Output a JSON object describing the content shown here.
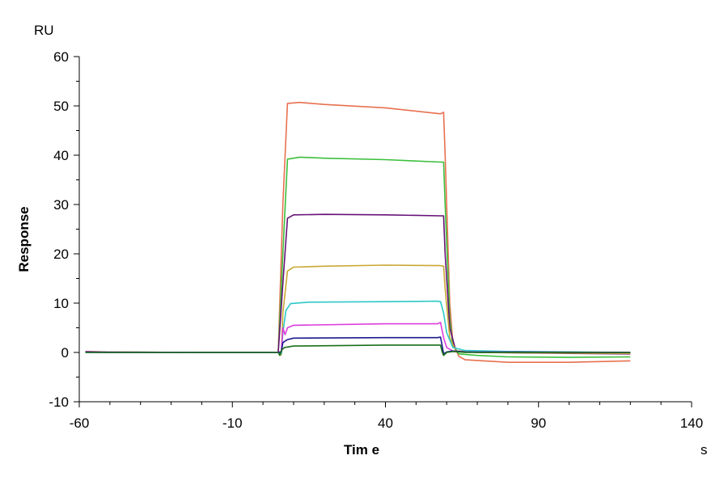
{
  "chart_data": {
    "type": "line",
    "title": "",
    "xlabel": "Tim e",
    "ylabel": "Response",
    "y_unit": "RU",
    "x_unit": "s",
    "xlim": [
      -60,
      140
    ],
    "ylim": [
      -10,
      60
    ],
    "x_ticks": [
      -60,
      -10,
      40,
      90,
      140
    ],
    "y_ticks": [
      -10,
      0,
      10,
      20,
      30,
      40,
      50,
      60
    ],
    "x_minor_step": 10,
    "y_minor_step": 5,
    "grid": false,
    "legend": "none",
    "series": [
      {
        "color": "#e8704f",
        "points": [
          [
            -58,
            0.2
          ],
          [
            -50,
            0.1
          ],
          [
            -20,
            0
          ],
          [
            5,
            0
          ],
          [
            6.5,
            30
          ],
          [
            8,
            50.5
          ],
          [
            12,
            50.7
          ],
          [
            20,
            50.3
          ],
          [
            40,
            49.6
          ],
          [
            58,
            48.4
          ],
          [
            59,
            48.7
          ],
          [
            59.5,
            40
          ],
          [
            61,
            10
          ],
          [
            62,
            2
          ],
          [
            64,
            -0.8
          ],
          [
            66,
            -1.5
          ],
          [
            80,
            -2
          ],
          [
            100,
            -2
          ],
          [
            120,
            -1.7
          ]
        ]
      },
      {
        "color": "#3cbf3c",
        "points": [
          [
            -58,
            0.2
          ],
          [
            -50,
            0.1
          ],
          [
            -20,
            0
          ],
          [
            5,
            0
          ],
          [
            6.5,
            20
          ],
          [
            8,
            39.2
          ],
          [
            12,
            39.6
          ],
          [
            20,
            39.4
          ],
          [
            40,
            39.1
          ],
          [
            58,
            38.6
          ],
          [
            59,
            38.6
          ],
          [
            59.5,
            30
          ],
          [
            61,
            7
          ],
          [
            62,
            1.5
          ],
          [
            64,
            -0.3
          ],
          [
            70,
            -0.6
          ],
          [
            80,
            -0.9
          ],
          [
            100,
            -1
          ],
          [
            120,
            -0.9
          ]
        ]
      },
      {
        "color": "#661177",
        "points": [
          [
            -58,
            0.2
          ],
          [
            -50,
            0
          ],
          [
            -20,
            0
          ],
          [
            5,
            0
          ],
          [
            6.5,
            14
          ],
          [
            8,
            27.2
          ],
          [
            10,
            27.9
          ],
          [
            20,
            28
          ],
          [
            40,
            27.9
          ],
          [
            58,
            27.7
          ],
          [
            59,
            27.7
          ],
          [
            59.5,
            20
          ],
          [
            61,
            5
          ],
          [
            63,
            0.3
          ],
          [
            70,
            0
          ],
          [
            100,
            -0.2
          ],
          [
            120,
            -0.3
          ]
        ]
      },
      {
        "color": "#c8a832",
        "points": [
          [
            -58,
            0.1
          ],
          [
            -50,
            0
          ],
          [
            -20,
            0
          ],
          [
            5,
            0
          ],
          [
            6,
            -0.5
          ],
          [
            6.5,
            8
          ],
          [
            8,
            16.5
          ],
          [
            10,
            17.3
          ],
          [
            20,
            17.5
          ],
          [
            40,
            17.7
          ],
          [
            58,
            17.6
          ],
          [
            59,
            17.5
          ],
          [
            59.5,
            13
          ],
          [
            61,
            3
          ],
          [
            63,
            0.3
          ],
          [
            70,
            0
          ],
          [
            120,
            -0.2
          ]
        ]
      },
      {
        "color": "#2ec8c8",
        "points": [
          [
            -58,
            0
          ],
          [
            -20,
            0
          ],
          [
            5,
            0
          ],
          [
            6,
            -0.3
          ],
          [
            6.5,
            4
          ],
          [
            7.5,
            8.5
          ],
          [
            9,
            9.9
          ],
          [
            15,
            10.2
          ],
          [
            40,
            10.3
          ],
          [
            57,
            10.4
          ],
          [
            58,
            10.3
          ],
          [
            59,
            8
          ],
          [
            60,
            4
          ],
          [
            62,
            1
          ],
          [
            66,
            0.4
          ],
          [
            80,
            0.2
          ],
          [
            120,
            0
          ]
        ]
      },
      {
        "color": "#dd3cdd",
        "points": [
          [
            -58,
            0.1
          ],
          [
            -20,
            0
          ],
          [
            5,
            0
          ],
          [
            6,
            0.2
          ],
          [
            6.5,
            5
          ],
          [
            7.2,
            3.6
          ],
          [
            8,
            5
          ],
          [
            10,
            5.5
          ],
          [
            40,
            5.8
          ],
          [
            57,
            5.8
          ],
          [
            58,
            6.1
          ],
          [
            59,
            3
          ],
          [
            60,
            1
          ],
          [
            62,
            0.3
          ],
          [
            66,
            0.1
          ],
          [
            120,
            0
          ]
        ]
      },
      {
        "color": "#1a1a8c",
        "points": [
          [
            -58,
            0
          ],
          [
            -20,
            0
          ],
          [
            5,
            0
          ],
          [
            6,
            0.1
          ],
          [
            6.5,
            2
          ],
          [
            8,
            2.6
          ],
          [
            10,
            2.9
          ],
          [
            40,
            3
          ],
          [
            57,
            3
          ],
          [
            58,
            3.1
          ],
          [
            58.5,
            1.5
          ],
          [
            59,
            -0.3
          ],
          [
            60,
            0.1
          ],
          [
            62,
            0.3
          ],
          [
            66,
            0.1
          ],
          [
            120,
            0
          ]
        ]
      },
      {
        "color": "#1a6e1a",
        "points": [
          [
            -58,
            0
          ],
          [
            -20,
            0
          ],
          [
            5,
            0
          ],
          [
            5.5,
            -0.6
          ],
          [
            6,
            0.4
          ],
          [
            7,
            1
          ],
          [
            10,
            1.3
          ],
          [
            40,
            1.5
          ],
          [
            57,
            1.5
          ],
          [
            58,
            1.5
          ],
          [
            58.5,
            0.2
          ],
          [
            59,
            -0.6
          ],
          [
            60,
            0
          ],
          [
            62,
            0.2
          ],
          [
            66,
            0
          ],
          [
            120,
            0
          ]
        ]
      }
    ]
  }
}
